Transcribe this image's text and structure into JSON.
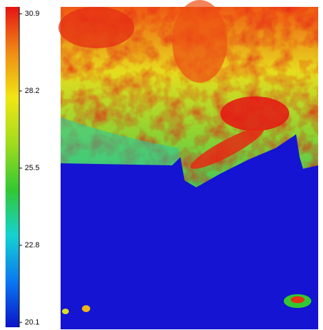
{
  "chart_data": {
    "type": "heatmap",
    "colorbar": {
      "lim": [
        20.1,
        30.9
      ],
      "ticks": [
        30.9,
        28.2,
        25.5,
        22.8,
        20.1
      ],
      "colors": [
        "#0a14c8",
        "#0a78f0",
        "#14d2d2",
        "#32c832",
        "#a0dc1e",
        "#f0e614",
        "#f08c14",
        "#e61414"
      ]
    }
  }
}
